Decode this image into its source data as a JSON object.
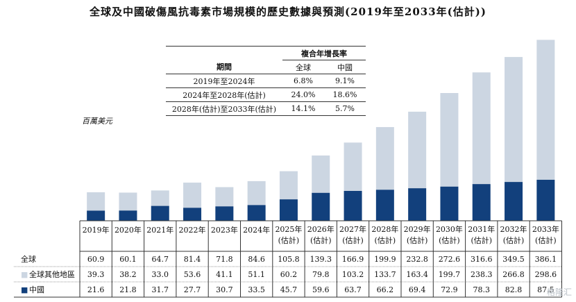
{
  "title": "全球及中國破傷風抗毒素市場規模的歷史數據與預測(2019年至2033年(估計))",
  "unit_label": "百萬美元",
  "watermark": "格隆汇",
  "colors": {
    "china": "#12407c",
    "other": "#ccd6e2",
    "grid": "#333333"
  },
  "cagr_table": {
    "header_group": "複合年增長率",
    "period_label": "期間",
    "col_global": "全球",
    "col_china": "中國",
    "rows": [
      {
        "period": "2019年至2024年",
        "global": "6.8%",
        "china": "9.1%"
      },
      {
        "period": "2024年至2028年(估計)",
        "global": "24.0%",
        "china": "18.6%"
      },
      {
        "period": "2028年(估計)至2033年(估計)",
        "global": "14.1%",
        "china": "5.7%"
      }
    ]
  },
  "chart_data": {
    "type": "bar",
    "stacked": true,
    "categories": [
      "2019年",
      "2020年",
      "2021年",
      "2022年",
      "2023年",
      "2024年",
      "2025年(估計)",
      "2026年(估計)",
      "2027年(估計)",
      "2028年(估計)",
      "2029年(估計)",
      "2030年(估計)",
      "2031年(估計)",
      "2032年(估計)",
      "2033年(估計)"
    ],
    "category_lines": [
      [
        "2019年"
      ],
      [
        "2020年"
      ],
      [
        "2021年"
      ],
      [
        "2022年"
      ],
      [
        "2023年"
      ],
      [
        "2024年"
      ],
      [
        "2025年",
        "(估計)"
      ],
      [
        "2026年",
        "(估計)"
      ],
      [
        "2027年",
        "(估計)"
      ],
      [
        "2028年",
        "(估計)"
      ],
      [
        "2029年",
        "(估計)"
      ],
      [
        "2030年",
        "(估計)"
      ],
      [
        "2031年",
        "(估計)"
      ],
      [
        "2032年",
        "(估計)"
      ],
      [
        "2033年",
        "(估計)"
      ]
    ],
    "ylabel": "百萬美元",
    "ylim": [
      0,
      400
    ],
    "totals": {
      "name": "全球",
      "values": [
        "60.9",
        "60.1",
        "64.7",
        "81.4",
        "71.8",
        "84.6",
        "105.8",
        "139.3",
        "166.9",
        "199.9",
        "232.8",
        "272.6",
        "316.6",
        "349.5",
        "386.1"
      ]
    },
    "series": [
      {
        "name": "中國",
        "marker": "■",
        "color": "#12407c",
        "values": [
          "21.6",
          "21.8",
          "31.7",
          "27.7",
          "30.7",
          "33.5",
          "45.7",
          "59.6",
          "63.7",
          "66.2",
          "69.4",
          "72.9",
          "78.3",
          "82.8",
          "87.5"
        ]
      },
      {
        "name": "全球其他地區",
        "marker": "■",
        "color": "#ccd6e2",
        "values": [
          "39.3",
          "38.2",
          "33.0",
          "53.6",
          "41.1",
          "51.1",
          "60.2",
          "79.8",
          "103.2",
          "133.7",
          "163.4",
          "199.7",
          "238.3",
          "266.8",
          "298.6"
        ]
      }
    ]
  }
}
